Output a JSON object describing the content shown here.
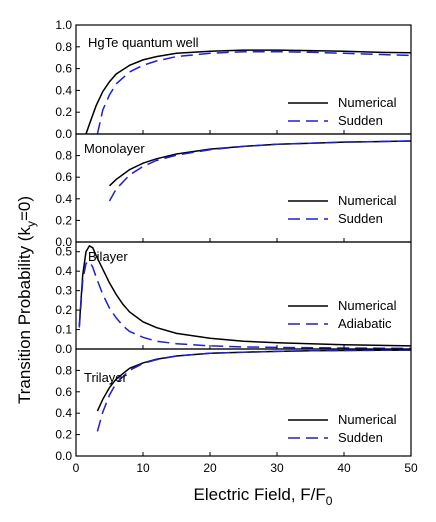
{
  "figure": {
    "ylabel_main": "Transition Probability (k",
    "ylabel_sub": "y",
    "ylabel_end": "=0)",
    "xlabel_main": "Electric Field, F/F",
    "xlabel_sub": "0"
  },
  "chart_data": [
    {
      "type": "line",
      "annotation": "HgTe quantum well",
      "xlim": [
        0,
        50
      ],
      "ylim": [
        0,
        1.0
      ],
      "xticks": [
        0,
        10,
        20,
        30,
        40,
        50
      ],
      "yticks": [
        0.0,
        0.2,
        0.4,
        0.6,
        0.8,
        1.0
      ],
      "ytick_labels": [
        "0.0",
        "0.2",
        "0.4",
        "0.6",
        "0.8",
        "1.0"
      ],
      "legend_position": "bottom-right",
      "series": [
        {
          "name": "Numerical",
          "color": "#000000",
          "dash": "solid",
          "x": [
            1.5,
            2,
            3,
            4,
            5,
            6,
            8,
            10,
            12,
            15,
            20,
            25,
            30,
            35,
            40,
            45,
            50
          ],
          "y": [
            0.0,
            0.09,
            0.26,
            0.39,
            0.48,
            0.55,
            0.63,
            0.68,
            0.71,
            0.74,
            0.76,
            0.77,
            0.77,
            0.765,
            0.76,
            0.75,
            0.745
          ]
        },
        {
          "name": "Sudden",
          "color": "#1f1fd6",
          "dash": "dashed",
          "x": [
            3.2,
            4,
            5,
            6,
            8,
            10,
            12,
            15,
            20,
            25,
            30,
            35,
            40,
            45,
            50
          ],
          "y": [
            0.0,
            0.22,
            0.36,
            0.46,
            0.57,
            0.63,
            0.67,
            0.71,
            0.74,
            0.755,
            0.755,
            0.75,
            0.74,
            0.73,
            0.72
          ]
        }
      ]
    },
    {
      "type": "line",
      "annotation": "Monolayer",
      "xlim": [
        0,
        50
      ],
      "ylim": [
        0,
        1.0
      ],
      "xticks": [
        0,
        10,
        20,
        30,
        40,
        50
      ],
      "yticks": [
        0.0,
        0.2,
        0.4,
        0.6,
        0.8
      ],
      "ytick_labels": [
        "0.0",
        "0.2",
        "0.4",
        "0.6",
        "0.8"
      ],
      "legend_position": "bottom-right",
      "series": [
        {
          "name": "Numerical",
          "color": "#000000",
          "dash": "solid",
          "x": [
            5,
            6,
            8,
            10,
            12,
            15,
            20,
            25,
            30,
            35,
            40,
            45,
            50
          ],
          "y": [
            0.52,
            0.58,
            0.67,
            0.73,
            0.77,
            0.815,
            0.86,
            0.885,
            0.905,
            0.915,
            0.925,
            0.93,
            0.935
          ]
        },
        {
          "name": "Sudden",
          "color": "#1f1fd6",
          "dash": "dashed",
          "x": [
            5,
            6,
            8,
            10,
            12,
            15,
            20,
            25,
            30,
            35,
            40,
            45,
            50
          ],
          "y": [
            0.38,
            0.49,
            0.62,
            0.7,
            0.755,
            0.805,
            0.855,
            0.885,
            0.905,
            0.915,
            0.925,
            0.93,
            0.935
          ]
        }
      ]
    },
    {
      "type": "line",
      "annotation": "Bilayer",
      "xlim": [
        0,
        50
      ],
      "ylim": [
        0,
        0.55
      ],
      "xticks": [
        0,
        10,
        20,
        30,
        40,
        50
      ],
      "yticks": [
        0.0,
        0.1,
        0.2,
        0.3,
        0.4,
        0.5
      ],
      "ytick_labels": [
        "0.0",
        "0.1",
        "0.2",
        "0.3",
        "0.4",
        "0.5"
      ],
      "legend_position": "bottom-right",
      "series": [
        {
          "name": "Numerical",
          "color": "#000000",
          "dash": "solid",
          "x": [
            0.5,
            1,
            1.5,
            2,
            2.5,
            3,
            4,
            5,
            6,
            7,
            8,
            10,
            12,
            15,
            20,
            25,
            30,
            40,
            50
          ],
          "y": [
            0.12,
            0.38,
            0.5,
            0.53,
            0.52,
            0.48,
            0.41,
            0.34,
            0.28,
            0.23,
            0.19,
            0.14,
            0.11,
            0.08,
            0.055,
            0.04,
            0.032,
            0.022,
            0.016
          ]
        },
        {
          "name": "Adiabatic",
          "color": "#1f1fd6",
          "dash": "dashed",
          "x": [
            0.5,
            1,
            1.5,
            2,
            2.5,
            3,
            4,
            5,
            6,
            7,
            8,
            10,
            12,
            15,
            20,
            25,
            30,
            40,
            50
          ],
          "y": [
            0.11,
            0.35,
            0.44,
            0.45,
            0.42,
            0.37,
            0.28,
            0.21,
            0.16,
            0.12,
            0.09,
            0.06,
            0.04,
            0.027,
            0.016,
            0.011,
            0.008,
            0.005,
            0.003
          ]
        }
      ]
    },
    {
      "type": "line",
      "annotation": "Trilayer",
      "xlim": [
        0,
        50
      ],
      "ylim": [
        0,
        1.0
      ],
      "xticks": [
        0,
        10,
        20,
        30,
        40,
        50
      ],
      "xtick_labels": [
        "0",
        "10",
        "20",
        "30",
        "40",
        "50"
      ],
      "yticks": [
        0.0,
        0.2,
        0.4,
        0.6,
        0.8
      ],
      "ytick_labels": [
        "0.0",
        "0.2",
        "0.4",
        "0.6",
        "0.8"
      ],
      "legend_position": "bottom-right",
      "series": [
        {
          "name": "Numerical",
          "color": "#000000",
          "dash": "solid",
          "x": [
            3.2,
            4,
            5,
            6,
            8,
            10,
            12,
            15,
            20,
            25,
            30,
            35,
            40,
            45,
            50
          ],
          "y": [
            0.42,
            0.53,
            0.64,
            0.72,
            0.82,
            0.87,
            0.905,
            0.935,
            0.96,
            0.97,
            0.978,
            0.983,
            0.986,
            0.988,
            0.99
          ]
        },
        {
          "name": "Sudden",
          "color": "#1f1fd6",
          "dash": "dashed",
          "x": [
            3.2,
            4,
            5,
            6,
            8,
            10,
            12,
            15,
            20,
            25,
            30,
            35,
            40,
            45,
            50
          ],
          "y": [
            0.23,
            0.41,
            0.57,
            0.68,
            0.8,
            0.865,
            0.9,
            0.935,
            0.96,
            0.97,
            0.978,
            0.983,
            0.986,
            0.988,
            0.99
          ]
        }
      ]
    }
  ]
}
